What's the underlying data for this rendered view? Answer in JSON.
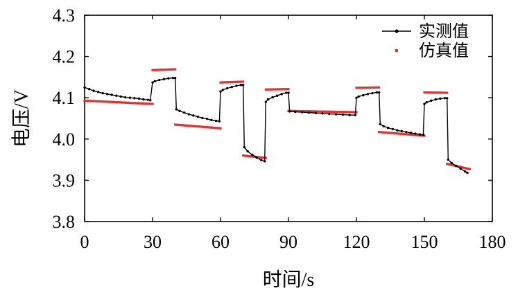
{
  "chart_data": {
    "type": "line",
    "title": "",
    "xlabel": "时间/s",
    "ylabel": "电压/V",
    "xlim": [
      0,
      180
    ],
    "ylim": [
      3.8,
      4.3
    ],
    "xticks": [
      0,
      30,
      60,
      90,
      120,
      150,
      180
    ],
    "xtick_labels": [
      "0",
      "30",
      "60",
      "90",
      "120",
      "150",
      "180"
    ],
    "yticks": [
      3.8,
      3.9,
      4.0,
      4.1,
      4.2,
      4.3
    ],
    "ytick_labels": [
      "3.8",
      "3.9",
      "4.0",
      "4.1",
      "4.2",
      "4.3"
    ],
    "grid": false,
    "legend_position": "top-right",
    "series": [
      {
        "name": "实测值",
        "color": "#000000",
        "style": "line-with-markers",
        "x": [
          0,
          2,
          4,
          6,
          8,
          10,
          12,
          14,
          16,
          18,
          20,
          22,
          24,
          26,
          28,
          29,
          30,
          31,
          33,
          35,
          37,
          39,
          40,
          40.5,
          42,
          44,
          46,
          48,
          50,
          52,
          54,
          56,
          58,
          59.5,
          60,
          61,
          63,
          65,
          67,
          69,
          70,
          70.5,
          72,
          74,
          76,
          78,
          79.5,
          80,
          81,
          83,
          85,
          87,
          89,
          90,
          90.5,
          93,
          96,
          99,
          102,
          105,
          108,
          111,
          114,
          117,
          119.5,
          120,
          121,
          123,
          125,
          127,
          129,
          130,
          130.5,
          132,
          134,
          136,
          138,
          140,
          142,
          144,
          146,
          148,
          149.5,
          150,
          151,
          153,
          155,
          157,
          159,
          160,
          160.5,
          162,
          164,
          166,
          168,
          169
        ],
        "y": [
          4.125,
          4.121,
          4.117,
          4.114,
          4.111,
          4.109,
          4.107,
          4.105,
          4.103,
          4.101,
          4.1,
          4.099,
          4.098,
          4.096,
          4.095,
          4.094,
          4.137,
          4.14,
          4.143,
          4.145,
          4.147,
          4.148,
          4.148,
          4.072,
          4.068,
          4.064,
          4.06,
          4.057,
          4.054,
          4.051,
          4.049,
          4.046,
          4.044,
          4.043,
          4.115,
          4.119,
          4.123,
          4.126,
          4.129,
          4.131,
          4.131,
          3.98,
          3.97,
          3.962,
          3.955,
          3.949,
          3.946,
          4.09,
          4.096,
          4.101,
          4.105,
          4.109,
          4.112,
          4.112,
          4.067,
          4.066,
          4.065,
          4.064,
          4.063,
          4.062,
          4.061,
          4.06,
          4.059,
          4.058,
          4.058,
          4.1,
          4.103,
          4.106,
          4.109,
          4.111,
          4.113,
          4.113,
          4.036,
          4.031,
          4.027,
          4.024,
          4.021,
          4.019,
          4.017,
          4.015,
          4.013,
          4.011,
          4.01,
          4.085,
          4.089,
          4.093,
          4.096,
          4.098,
          4.099,
          4.099,
          3.95,
          3.942,
          3.935,
          3.928,
          3.921,
          3.918
        ]
      },
      {
        "name": "仿真值",
        "color": "#e8302c",
        "style": "markers",
        "segments": [
          {
            "x": [
              0,
              30
            ],
            "y": [
              4.093,
              4.085
            ]
          },
          {
            "x": [
              30,
              40
            ],
            "y": [
              4.167,
              4.169
            ]
          },
          {
            "x": [
              40,
              60
            ],
            "y": [
              4.035,
              4.026
            ]
          },
          {
            "x": [
              60,
              70
            ],
            "y": [
              4.137,
              4.139
            ]
          },
          {
            "x": [
              70,
              80
            ],
            "y": [
              3.96,
              3.954
            ]
          },
          {
            "x": [
              80,
              90
            ],
            "y": [
              4.12,
              4.121
            ]
          },
          {
            "x": [
              90,
              120
            ],
            "y": [
              4.068,
              4.065
            ]
          },
          {
            "x": [
              120,
              130
            ],
            "y": [
              4.124,
              4.125
            ]
          },
          {
            "x": [
              130,
              150
            ],
            "y": [
              4.017,
              4.008
            ]
          },
          {
            "x": [
              150,
              160
            ],
            "y": [
              4.113,
              4.112
            ]
          },
          {
            "x": [
              160,
              170
            ],
            "y": [
              3.94,
              3.927
            ]
          }
        ]
      }
    ]
  }
}
